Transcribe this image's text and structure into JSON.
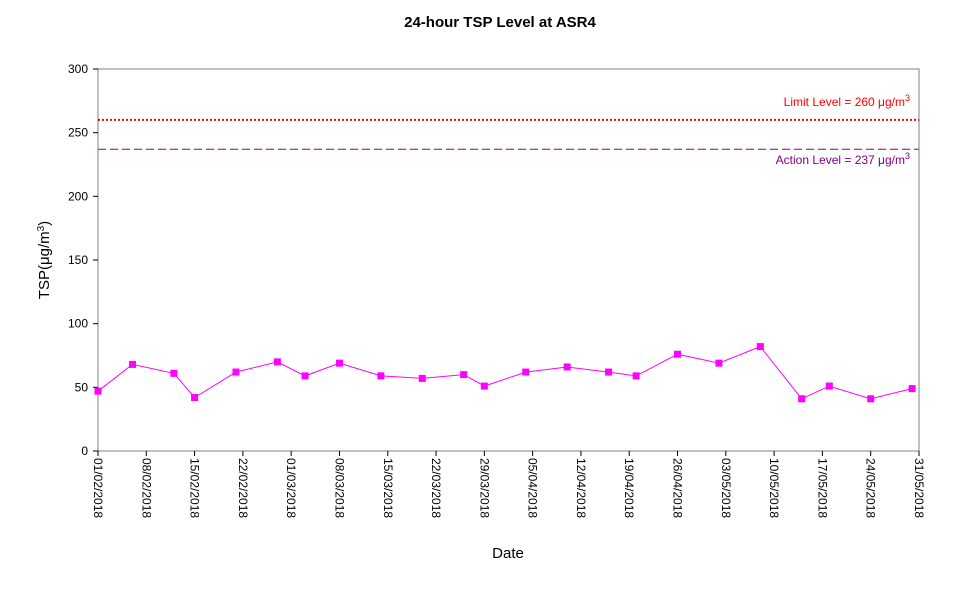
{
  "chart_data": {
    "type": "line",
    "title": "24-hour TSP Level at ASR4",
    "xlabel": "Date",
    "ylabel": "TSP(μg/m3)",
    "ylabel_base": "TSP(",
    "ylabel_unit": "μg/m",
    "ylabel_sup": "3",
    "ylabel_close": ")",
    "ylim": [
      0,
      300
    ],
    "y_ticks": [
      0,
      50,
      100,
      150,
      200,
      250,
      300
    ],
    "x_ticks": [
      "01/02/2018",
      "08/02/2018",
      "15/02/2018",
      "22/02/2018",
      "01/03/2018",
      "08/03/2018",
      "15/03/2018",
      "22/03/2018",
      "29/03/2018",
      "05/04/2018",
      "12/04/2018",
      "19/04/2018",
      "26/04/2018",
      "03/05/2018",
      "10/05/2018",
      "17/05/2018",
      "24/05/2018",
      "31/05/2018"
    ],
    "x_range": [
      "01/02/2018",
      "31/05/2018"
    ],
    "grid": false,
    "series": [
      {
        "color": "#ff00ff",
        "x": [
          "01/02/2018",
          "06/02/2018",
          "12/02/2018",
          "15/02/2018",
          "21/02/2018",
          "27/02/2018",
          "03/03/2018",
          "08/03/2018",
          "14/03/2018",
          "20/03/2018",
          "26/03/2018",
          "29/03/2018",
          "04/04/2018",
          "10/04/2018",
          "16/04/2018",
          "20/04/2018",
          "26/04/2018",
          "02/05/2018",
          "08/05/2018",
          "14/05/2018",
          "18/05/2018",
          "24/05/2018",
          "30/05/2018"
        ],
        "values": [
          47,
          68,
          61,
          42,
          62,
          70,
          59,
          69,
          59,
          57,
          60,
          51,
          62,
          66,
          62,
          59,
          76,
          69,
          82,
          41,
          51,
          41,
          49
        ]
      }
    ],
    "reference_lines": [
      {
        "value": 260,
        "label_base": "Limit Level  = 260 μg/m",
        "label_sup": "3",
        "color": "#ff0000",
        "style": "dotted"
      },
      {
        "value": 237,
        "label_base": "Action Level  = 237 μg/m",
        "label_sup": "3",
        "color": "#800080",
        "style": "dashed"
      }
    ]
  }
}
